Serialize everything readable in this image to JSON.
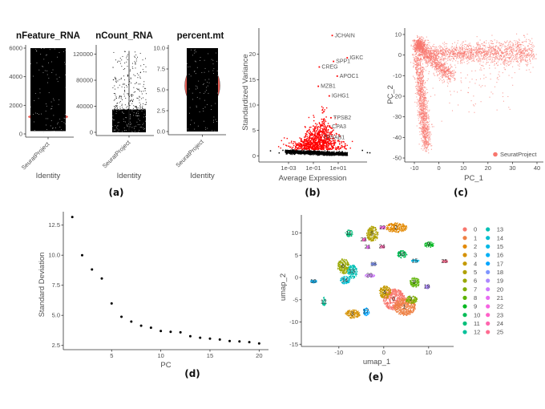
{
  "panel_labels": {
    "a": "(a)",
    "b": "(b)",
    "c": "(c)",
    "d": "(d)",
    "e": "(e)"
  },
  "chart_data": [
    {
      "type": "violin",
      "title": "nFeature_RNA",
      "xlabel": "Identity",
      "category": "SeuratProject",
      "ylim": [
        0,
        6000
      ],
      "yticks": [
        "0",
        "2000",
        "4000",
        "6000"
      ],
      "point_range": [
        200,
        6000
      ],
      "median": 1200,
      "point_color": "#000000",
      "violin_color": "#E8645C"
    },
    {
      "type": "violin",
      "title": "nCount_RNA",
      "xlabel": "Identity",
      "category": "SeuratProject",
      "ylim": [
        0,
        125000
      ],
      "yticks": [
        "0",
        "40000",
        "80000",
        "120000"
      ],
      "dense_range": [
        0,
        35000
      ],
      "max": 125000,
      "point_color": "#000000",
      "violin_color": "#E8645C"
    },
    {
      "type": "violin",
      "title": "percent.mt",
      "xlabel": "Identity",
      "category": "SeuratProject",
      "ylim": [
        0,
        10
      ],
      "yticks": [
        "0.0",
        "2.5",
        "5.0",
        "7.5",
        "10.0"
      ],
      "point_range": [
        0,
        10
      ],
      "violin_center": 5.5,
      "point_color": "#000000",
      "violin_color": "#E8645C"
    },
    {
      "type": "scatter",
      "xlabel": "Average Expression",
      "ylabel": "Standardized Variance",
      "xscale": "log10",
      "xticks": [
        "1e-03",
        "1e-01",
        "1e+01"
      ],
      "yticks": [
        "0",
        "5",
        "10",
        "15",
        "20"
      ],
      "ylim": [
        0,
        24
      ],
      "colors": {
        "variable": "#FF0000",
        "non_variable": "#000000"
      },
      "labeled_genes": [
        {
          "name": "JCHAIN",
          "x": 3.3,
          "y": 23.7
        },
        {
          "name": "IGKC",
          "x": 53,
          "y": 19.3
        },
        {
          "name": "SPP1",
          "x": 4.2,
          "y": 18.6
        },
        {
          "name": "CREG",
          "x": 0.3,
          "y": 17.5
        },
        {
          "name": "APOC1",
          "x": 8.3,
          "y": 15.7
        },
        {
          "name": "MZB1",
          "x": 0.25,
          "y": 13.7
        },
        {
          "name": "IGHG1",
          "x": 1.9,
          "y": 11.8
        },
        {
          "name": "TPSB2",
          "x": 2.6,
          "y": 7.5
        },
        {
          "name": "CPA3",
          "x": 2.0,
          "y": 5.7
        },
        {
          "name": "TPSAB1",
          "x": 0.4,
          "y": 3.6
        }
      ]
    },
    {
      "type": "scatter",
      "xlabel": "PC_1",
      "ylabel": "PC_2",
      "xticks": [
        "-10",
        "0",
        "10",
        "20",
        "30",
        "40"
      ],
      "yticks": [
        "10",
        "0",
        "-10",
        "-20",
        "-30",
        "-40",
        "-50"
      ],
      "xlim": [
        -12,
        42
      ],
      "ylim": [
        -50,
        10
      ],
      "legend": [
        "SeuratProject"
      ],
      "legend_position": "bottom-right",
      "color": "#F8766D"
    },
    {
      "type": "scatter",
      "xlabel": "PC",
      "ylabel": "Standard Deviation",
      "x": [
        1,
        2,
        3,
        4,
        5,
        6,
        7,
        8,
        9,
        10,
        11,
        12,
        13,
        14,
        15,
        16,
        17,
        18,
        19,
        20
      ],
      "y": [
        13.17,
        10.0,
        8.81,
        8.06,
        5.99,
        4.88,
        4.48,
        4.14,
        3.97,
        3.7,
        3.63,
        3.59,
        3.26,
        3.14,
        3.06,
        2.99,
        2.86,
        2.83,
        2.77,
        2.66
      ],
      "xticks": [
        "5",
        "10",
        "15",
        "20"
      ],
      "yticks": [
        "2.5",
        "5.0",
        "7.5",
        "10.0",
        "12.5"
      ]
    },
    {
      "type": "scatter",
      "xlabel": "umap_1",
      "ylabel": "umap_2",
      "xticks": [
        "-10",
        "0",
        "10"
      ],
      "yticks": [
        "-15",
        "-10",
        "-5",
        "0",
        "5",
        "10"
      ],
      "legend_position": "right",
      "clusters": [
        {
          "id": "0",
          "x": 2.2,
          "y": -4.8,
          "color": "#F8766D"
        },
        {
          "id": "1",
          "x": 4.6,
          "y": -6.5,
          "color": "#EE8044"
        },
        {
          "id": "2",
          "x": 2.7,
          "y": 11.3,
          "color": "#E38900"
        },
        {
          "id": "3",
          "x": -7.0,
          "y": -8.1,
          "color": "#D59100"
        },
        {
          "id": "4",
          "x": 0.2,
          "y": -3.2,
          "color": "#C49A00"
        },
        {
          "id": "5",
          "x": -2.6,
          "y": 9.9,
          "color": "#B0A100"
        },
        {
          "id": "6",
          "x": -9.1,
          "y": 2.6,
          "color": "#99A800"
        },
        {
          "id": "7",
          "x": 6.1,
          "y": -4.9,
          "color": "#7FAE00"
        },
        {
          "id": "8",
          "x": 6.8,
          "y": -1.0,
          "color": "#5BB300"
        },
        {
          "id": "9",
          "x": 10.0,
          "y": 7.5,
          "color": "#00B81F"
        },
        {
          "id": "10",
          "x": 4.0,
          "y": 5.3,
          "color": "#00BC56"
        },
        {
          "id": "11",
          "x": -7.8,
          "y": 10.0,
          "color": "#00BF7A"
        },
        {
          "id": "12",
          "x": -13.4,
          "y": -5.4,
          "color": "#00C19A"
        },
        {
          "id": "13",
          "x": -7.1,
          "y": 1.4,
          "color": "#00C0B5"
        },
        {
          "id": "14",
          "x": -8.7,
          "y": -0.5,
          "color": "#00BDD0"
        },
        {
          "id": "15",
          "x": 6.9,
          "y": 3.8,
          "color": "#00B8E5"
        },
        {
          "id": "16",
          "x": -15.7,
          "y": -0.8,
          "color": "#00B0F6"
        },
        {
          "id": "17",
          "x": -4.0,
          "y": -7.6,
          "color": "#00A5FF"
        },
        {
          "id": "18",
          "x": -2.3,
          "y": 3.1,
          "color": "#7F96FF"
        },
        {
          "id": "19",
          "x": 9.6,
          "y": -2.0,
          "color": "#AC88FF"
        },
        {
          "id": "20",
          "x": -3.2,
          "y": 0.5,
          "color": "#CE79FF"
        },
        {
          "id": "21",
          "x": -3.6,
          "y": 6.9,
          "color": "#E76BF3"
        },
        {
          "id": "22",
          "x": -0.3,
          "y": 11.3,
          "color": "#F663E2"
        },
        {
          "id": "23",
          "x": -4.5,
          "y": 8.6,
          "color": "#FF61C9"
        },
        {
          "id": "24",
          "x": -0.4,
          "y": 7.0,
          "color": "#FF65AE"
        },
        {
          "id": "25",
          "x": 13.5,
          "y": 3.7,
          "color": "#FF6C91"
        }
      ]
    }
  ]
}
